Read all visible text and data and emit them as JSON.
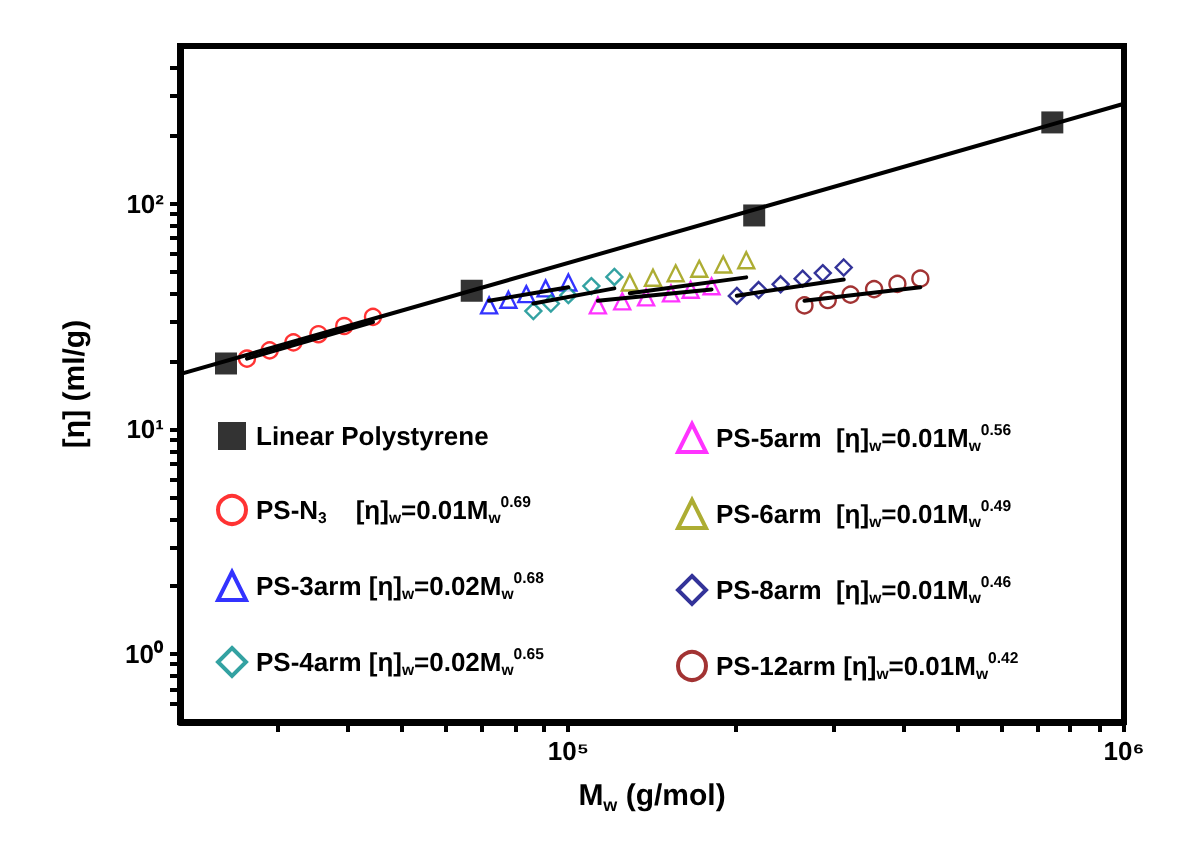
{
  "chart_data": {
    "type": "scatter",
    "xlabel": "M$_{w}$ (g/mol)",
    "ylabel": "[η] (ml/g)",
    "log": "xy",
    "xlim": [
      20000,
      1000000
    ],
    "ylim": [
      0.5,
      500
    ],
    "xticks": [
      {
        "value": 30000,
        "label": null
      },
      {
        "value": 40000,
        "label": null
      },
      {
        "value": 50000,
        "label": null
      },
      {
        "value": 60000,
        "label": null
      },
      {
        "value": 70000,
        "label": null
      },
      {
        "value": 80000,
        "label": null
      },
      {
        "value": 90000,
        "label": null
      },
      {
        "value": 100000,
        "label": "10⁵"
      },
      {
        "value": 200000,
        "label": null
      },
      {
        "value": 300000,
        "label": null
      },
      {
        "value": 400000,
        "label": null
      },
      {
        "value": 500000,
        "label": null
      },
      {
        "value": 600000,
        "label": null
      },
      {
        "value": 700000,
        "label": null
      },
      {
        "value": 800000,
        "label": null
      },
      {
        "value": 900000,
        "label": null
      },
      {
        "value": 1000000,
        "label": "10⁶"
      }
    ],
    "yticks": [
      {
        "value": 0.6,
        "label": null
      },
      {
        "value": 0.7,
        "label": null
      },
      {
        "value": 0.8,
        "label": null
      },
      {
        "value": 0.9,
        "label": null
      },
      {
        "value": 1,
        "label": "10⁰"
      },
      {
        "value": 2,
        "label": null
      },
      {
        "value": 3,
        "label": null
      },
      {
        "value": 4,
        "label": null
      },
      {
        "value": 5,
        "label": null
      },
      {
        "value": 6,
        "label": null
      },
      {
        "value": 7,
        "label": null
      },
      {
        "value": 8,
        "label": null
      },
      {
        "value": 9,
        "label": null
      },
      {
        "value": 10,
        "label": "10¹"
      },
      {
        "value": 20,
        "label": null
      },
      {
        "value": 30,
        "label": null
      },
      {
        "value": 40,
        "label": null
      },
      {
        "value": 50,
        "label": null
      },
      {
        "value": 60,
        "label": null
      },
      {
        "value": 70,
        "label": null
      },
      {
        "value": 80,
        "label": null
      },
      {
        "value": 90,
        "label": null
      },
      {
        "value": 100,
        "label": "10²"
      },
      {
        "value": 200,
        "label": null
      },
      {
        "value": 300,
        "label": null
      },
      {
        "value": 400,
        "label": null
      }
    ],
    "grid": false,
    "legend": "bottom",
    "line_style": "solid",
    "series": [
      {
        "name": "Linear Polystyrene",
        "marker": "square",
        "color": "#000000",
        "x": [
          24200,
          67000,
          216000,
          743000
        ],
        "values": [
          19.5,
          41,
          88.5,
          229
        ]
      },
      {
        "name": "PS-N$_{3}$    [η]$_{w}$=0.01M$_{w}$$^{0.69}$",
        "marker": "circle",
        "color": "#ff0000",
        "x": [
          26400,
          29000,
          32000,
          35500,
          39500,
          44500
        ],
        "values": [
          20.5,
          22.3,
          24.2,
          26.3,
          28.6,
          31.4
        ]
      },
      {
        "name": "PS-3arm [η]$_{w}$=0.02M$_{w}$$^{0.68}$",
        "marker": "triangle",
        "color": "#0000ff",
        "x": [
          72000,
          78000,
          84000,
          91000,
          100000
        ],
        "values": [
          35.3,
          37.4,
          39.6,
          42,
          44.6
        ]
      },
      {
        "name": "PS-4arm [η]$_{w}$=0.02M$_{w}$$^{0.65}$",
        "marker": "diamond",
        "color": "#008b8b",
        "x": [
          86500,
          93000,
          100000,
          110000,
          121000
        ],
        "values": [
          33.3,
          36,
          39.2,
          43,
          47.2
        ]
      },
      {
        "name": "PS-5arm  [η]$_{w}$=0.01M$_{w}$$^{0.56}$",
        "marker": "triangle",
        "color": "#ff00ff",
        "x": [
          113000,
          125000,
          138000,
          153000,
          166000,
          181000
        ],
        "values": [
          35.3,
          36.8,
          38.3,
          39.9,
          41.4,
          42.9
        ]
      },
      {
        "name": "PS-6arm  [η]$_{w}$=0.01M$_{w}$$^{0.49}$",
        "marker": "triangle",
        "color": "#999900",
        "x": [
          129000,
          142000,
          156000,
          172000,
          190000,
          209000
        ],
        "values": [
          44.6,
          46.8,
          49,
          51.3,
          53.6,
          56
        ]
      },
      {
        "name": "PS-8arm  [η]$_{w}$=0.01M$_{w}$$^{0.46}$",
        "marker": "diamond",
        "color": "#000080",
        "x": [
          201000,
          220000,
          241000,
          264000,
          287000,
          313000
        ],
        "values": [
          38.9,
          41.3,
          43.8,
          46.4,
          49.1,
          52
        ]
      },
      {
        "name": "PS-12arm [η]$_{w}$=0.01M$_{w}$$^{0.42}$",
        "marker": "circle",
        "color": "#8b0000",
        "x": [
          266000,
          293000,
          322000,
          355000,
          391000,
          430000
        ],
        "values": [
          35.3,
          37.3,
          39.4,
          41.7,
          44,
          46.4
        ]
      },
      {
        "type": "line",
        "marker": "none",
        "color": "#000000",
        "x": [
          20000,
          1000000
        ],
        "values": [
          17.5,
          277
        ]
      },
      {
        "type": "line",
        "marker": "none",
        "color": "#000000",
        "x": [
          26400,
          44500
        ],
        "values": [
          20.5,
          29.8
        ]
      },
      {
        "type": "line",
        "marker": "none",
        "color": "#000000",
        "x": [
          72000,
          100000
        ],
        "values": [
          37,
          42.5
        ]
      },
      {
        "type": "line",
        "marker": "none",
        "color": "#000000",
        "x": [
          86500,
          121000
        ],
        "values": [
          36,
          42
        ]
      },
      {
        "type": "line",
        "marker": "none",
        "color": "#000000",
        "x": [
          113000,
          181000
        ],
        "values": [
          37,
          41.5
        ]
      },
      {
        "type": "line",
        "marker": "none",
        "color": "#000000",
        "x": [
          129000,
          209000
        ],
        "values": [
          40,
          47
        ]
      },
      {
        "type": "line",
        "marker": "none",
        "color": "#000000",
        "x": [
          201000,
          313000
        ],
        "values": [
          39,
          46
        ]
      },
      {
        "type": "line",
        "marker": "none",
        "color": "#000000",
        "x": [
          266000,
          430000
        ],
        "values": [
          37,
          42.5
        ]
      }
    ]
  }
}
